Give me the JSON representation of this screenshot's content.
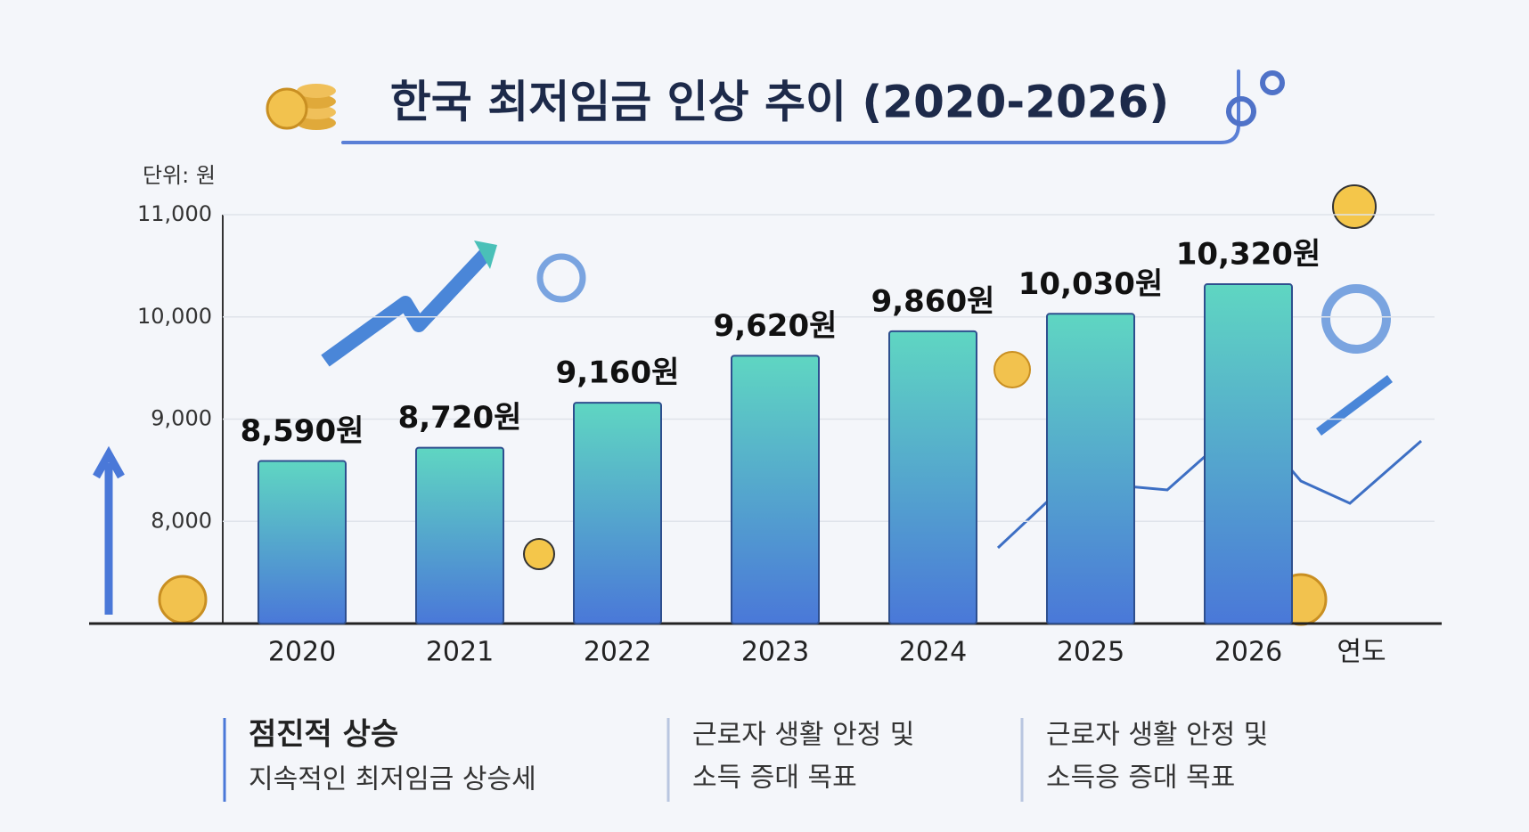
{
  "chart_data": {
    "type": "bar",
    "title": "한국 최저임금 인상 추이 (2020-2026)",
    "unit_label": "단위: 원",
    "x_label": "연도",
    "categories": [
      "2020",
      "2021",
      "2022",
      "2023",
      "2024",
      "2025",
      "2026"
    ],
    "values": [
      8590,
      8720,
      9160,
      9620,
      9860,
      10030,
      10320
    ],
    "value_labels": [
      "8,590원",
      "8,720원",
      "9,160원",
      "9,620원",
      "9,860원",
      "10,030원",
      "10,320원"
    ],
    "gradient": [
      "#5fd6c2",
      "#4a78d8"
    ],
    "ylim": [
      7000,
      11000
    ],
    "yticks": [
      {
        "value": 8000,
        "label": "8,000"
      },
      {
        "value": 9000,
        "label": "9,000"
      },
      {
        "value": 10000,
        "label": "10,000"
      },
      {
        "value": 11000,
        "label": "11,000"
      }
    ],
    "grid": true,
    "notes": [
      {
        "title": "점진적 상승",
        "lines": [
          "지속적인 최저임금 상승세"
        ]
      },
      {
        "lines": [
          "근로자 생활 안정 및",
          "소득 증대 목표"
        ]
      },
      {
        "lines": [
          "근로자 생활 안정 및",
          "소득응 증대 목표"
        ]
      }
    ]
  }
}
